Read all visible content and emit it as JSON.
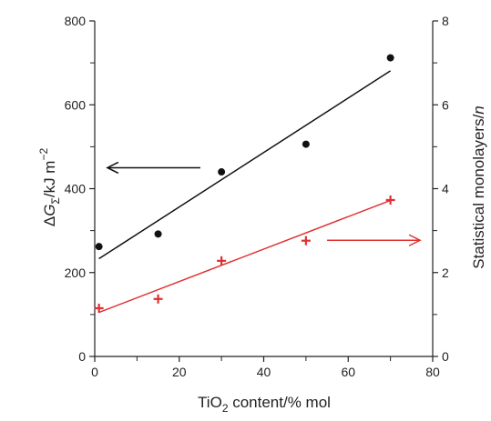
{
  "chart_data": {
    "type": "scatter",
    "title": "",
    "xlabel": {
      "prefix": "TiO",
      "sub": "2",
      "suffix": " content/% mol"
    },
    "ylabel_left": {
      "delta": "Δ",
      "G": "G",
      "sub": "Σ",
      "unit": "/kJ m",
      "sup": "−2"
    },
    "ylabel_right": {
      "text": "Statistical monolayers/",
      "italic": "n"
    },
    "xlim": [
      0,
      80
    ],
    "ylim_left": [
      0,
      800
    ],
    "ylim_right": [
      0,
      8
    ],
    "x_ticks": [
      0,
      20,
      40,
      60,
      80
    ],
    "y_left_ticks": [
      0,
      200,
      400,
      600,
      800
    ],
    "y_right_ticks": [
      0,
      2,
      4,
      6,
      8
    ],
    "grid": false,
    "series": [
      {
        "axis": "left",
        "marker": "circle",
        "color": "#111111",
        "x": [
          1,
          15,
          30,
          50,
          70
        ],
        "y": [
          262,
          292,
          440,
          506,
          712
        ],
        "fit": {
          "x": [
            1,
            70
          ],
          "y": [
            233,
            681
          ]
        }
      },
      {
        "axis": "right",
        "marker": "plus",
        "color": "#e03030",
        "x": [
          1,
          15,
          30,
          50,
          70
        ],
        "y": [
          1.15,
          1.37,
          2.28,
          2.76,
          3.73
        ],
        "fit": {
          "x": [
            1,
            70
          ],
          "y": [
            1.05,
            3.72
          ]
        }
      }
    ],
    "annotations": [
      {
        "type": "arrow",
        "direction": "left",
        "color": "#111111",
        "x_from": 25,
        "x_to": 3,
        "y_left": 450
      },
      {
        "type": "arrow",
        "direction": "right",
        "color": "#e03030",
        "x_from": 55,
        "x_to": 77,
        "y_left": 277
      }
    ]
  }
}
